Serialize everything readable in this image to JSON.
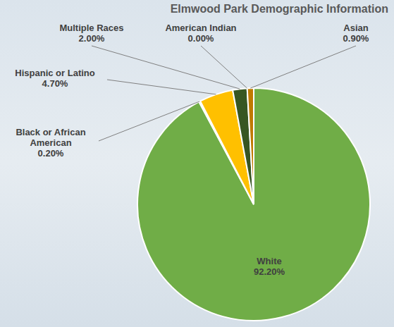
{
  "chart_data": {
    "type": "pie",
    "title": "Elmwood Park Demographic Information",
    "categories": [
      "White",
      "Black or African American",
      "Hispanic or Latino",
      "Multiple Races",
      "American Indian",
      "Asian"
    ],
    "values": [
      92.2,
      0.2,
      4.7,
      2.0,
      0.0,
      0.9
    ],
    "value_labels": [
      "92.20%",
      "0.20%",
      "4.70%",
      "2.00%",
      "0.00%",
      "0.90%"
    ],
    "colors": [
      "#70ad47",
      "#e7e6e6",
      "#ffc000",
      "#375623",
      "#a5a5a5",
      "#c07a00"
    ],
    "data_labels": true
  }
}
